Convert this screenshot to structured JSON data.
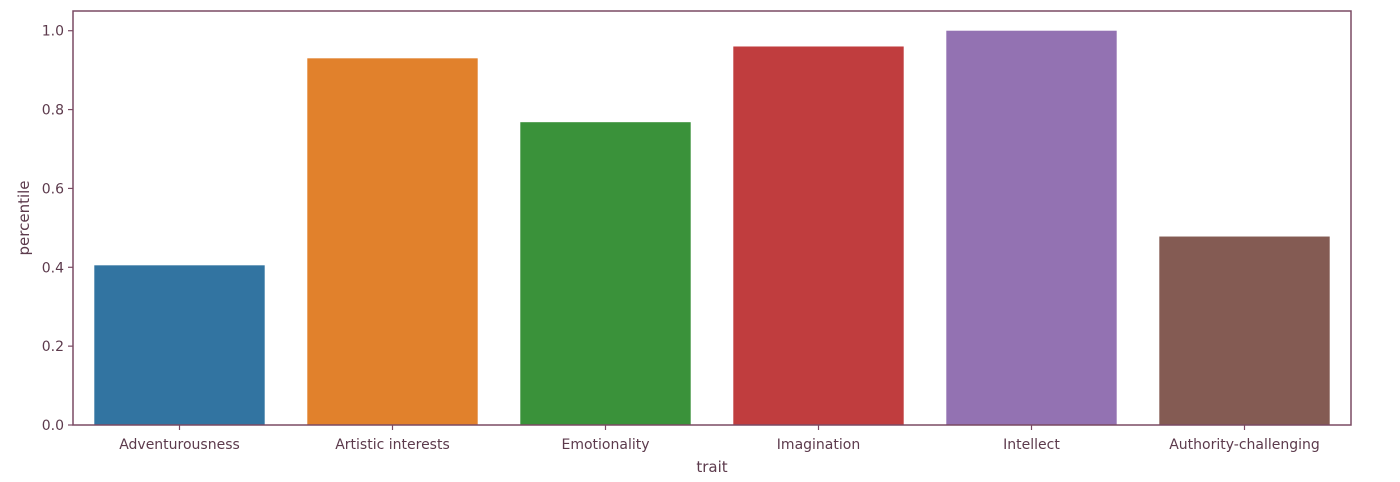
{
  "chart_data": {
    "type": "bar",
    "categories": [
      "Adventurousness",
      "Artistic interests",
      "Emotionality",
      "Imagination",
      "Intellect",
      "Authority-challenging"
    ],
    "values": [
      0.405,
      0.93,
      0.768,
      0.96,
      1.0,
      0.478
    ],
    "colors": [
      "#3274a1",
      "#e1812c",
      "#3a923a",
      "#c03d3e",
      "#9372b2",
      "#845b53"
    ],
    "title": "",
    "xlabel": "trait",
    "ylabel": "percentile",
    "ylim": [
      0,
      1.05
    ],
    "yticks": [
      0.0,
      0.2,
      0.4,
      0.6,
      0.8,
      1.0
    ],
    "ytick_labels": [
      "0.0",
      "0.2",
      "0.4",
      "0.6",
      "0.8",
      "1.0"
    ],
    "grid": false,
    "legend": "none",
    "axis_color": "#7a4a63",
    "label_color": "#5c3a4c"
  }
}
